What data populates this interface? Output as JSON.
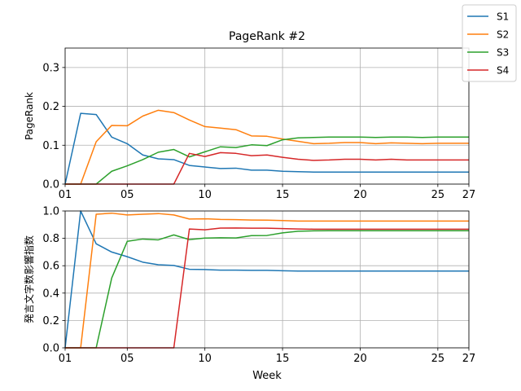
{
  "chart_data": [
    {
      "type": "line",
      "title": "PageRank #2",
      "xlabel": "",
      "ylabel": "PageRank",
      "xlim": [
        1,
        27
      ],
      "ylim": [
        0,
        0.35
      ],
      "xticks": [
        1,
        5,
        10,
        15,
        20,
        25,
        27
      ],
      "xtick_labels": [
        "01",
        "05",
        "10",
        "15",
        "20",
        "25",
        "27"
      ],
      "yticks": [
        0,
        0.1,
        0.2,
        0.3
      ],
      "ytick_labels": [
        "0.0",
        "0.1",
        "0.2",
        "0.3"
      ],
      "grid": true,
      "x": [
        1,
        2,
        3,
        4,
        5,
        6,
        7,
        8,
        9,
        10,
        11,
        12,
        13,
        14,
        15,
        16,
        17,
        18,
        19,
        20,
        21,
        22,
        23,
        24,
        25,
        26,
        27
      ],
      "series": [
        {
          "name": "S1",
          "color": "#1f77b4",
          "values": [
            0,
            0.182,
            0.179,
            0.121,
            0.104,
            0.075,
            0.065,
            0.063,
            0.048,
            0.044,
            0.04,
            0.041,
            0.036,
            0.036,
            0.033,
            0.032,
            0.031,
            0.031,
            0.031,
            0.031,
            0.031,
            0.031,
            0.031,
            0.031,
            0.031,
            0.031,
            0.031
          ]
        },
        {
          "name": "S2",
          "color": "#ff7f0e",
          "values": [
            0,
            0,
            0.109,
            0.151,
            0.15,
            0.175,
            0.19,
            0.184,
            0.165,
            0.148,
            0.144,
            0.14,
            0.124,
            0.123,
            0.116,
            0.11,
            0.104,
            0.105,
            0.107,
            0.107,
            0.104,
            0.106,
            0.105,
            0.104,
            0.105,
            0.105,
            0.105
          ]
        },
        {
          "name": "S3",
          "color": "#2ca02c",
          "values": [
            0,
            0,
            0,
            0.033,
            0.047,
            0.063,
            0.082,
            0.089,
            0.07,
            0.083,
            0.096,
            0.094,
            0.101,
            0.099,
            0.114,
            0.119,
            0.12,
            0.121,
            0.121,
            0.121,
            0.12,
            0.121,
            0.121,
            0.12,
            0.121,
            0.121,
            0.121
          ]
        },
        {
          "name": "S4",
          "color": "#d62728",
          "values": [
            0,
            0,
            0,
            0,
            0,
            0,
            0,
            0,
            0.079,
            0.071,
            0.081,
            0.079,
            0.073,
            0.075,
            0.069,
            0.064,
            0.061,
            0.062,
            0.064,
            0.064,
            0.062,
            0.064,
            0.062,
            0.062,
            0.062,
            0.062,
            0.062
          ]
        }
      ]
    },
    {
      "type": "line",
      "title": "",
      "xlabel": "Week",
      "ylabel": "発言文字数影響指数",
      "xlim": [
        1,
        27
      ],
      "ylim": [
        0,
        1.0
      ],
      "xticks": [
        1,
        5,
        10,
        15,
        20,
        25,
        27
      ],
      "xtick_labels": [
        "01",
        "05",
        "10",
        "15",
        "20",
        "25",
        "27"
      ],
      "yticks": [
        0,
        0.2,
        0.4,
        0.6,
        0.8,
        1.0
      ],
      "ytick_labels": [
        "0.0",
        "0.2",
        "0.4",
        "0.6",
        "0.8",
        "1.0"
      ],
      "grid": true,
      "x": [
        1,
        2,
        3,
        4,
        5,
        6,
        7,
        8,
        9,
        10,
        11,
        12,
        13,
        14,
        15,
        16,
        17,
        18,
        19,
        20,
        21,
        22,
        23,
        24,
        25,
        26,
        27
      ],
      "series": [
        {
          "name": "S1",
          "color": "#1f77b4",
          "values": [
            0,
            1.0,
            0.76,
            0.7,
            0.666,
            0.626,
            0.607,
            0.602,
            0.574,
            0.572,
            0.568,
            0.568,
            0.566,
            0.566,
            0.563,
            0.561,
            0.561,
            0.561,
            0.561,
            0.561,
            0.561,
            0.561,
            0.561,
            0.561,
            0.561,
            0.561,
            0.561
          ]
        },
        {
          "name": "S2",
          "color": "#ff7f0e",
          "values": [
            0,
            0,
            0.976,
            0.984,
            0.971,
            0.976,
            0.981,
            0.971,
            0.941,
            0.943,
            0.938,
            0.937,
            0.934,
            0.933,
            0.93,
            0.926,
            0.926,
            0.926,
            0.926,
            0.926,
            0.926,
            0.926,
            0.926,
            0.926,
            0.926,
            0.926,
            0.926
          ]
        },
        {
          "name": "S3",
          "color": "#2ca02c",
          "values": [
            0,
            0,
            0,
            0.51,
            0.778,
            0.795,
            0.789,
            0.825,
            0.791,
            0.802,
            0.804,
            0.803,
            0.82,
            0.821,
            0.84,
            0.852,
            0.855,
            0.856,
            0.856,
            0.856,
            0.856,
            0.856,
            0.856,
            0.856,
            0.856,
            0.856,
            0.856
          ]
        },
        {
          "name": "S4",
          "color": "#d62728",
          "values": [
            0,
            0,
            0,
            0,
            0,
            0,
            0,
            0,
            0.868,
            0.862,
            0.875,
            0.876,
            0.874,
            0.874,
            0.871,
            0.868,
            0.867,
            0.867,
            0.867,
            0.867,
            0.867,
            0.867,
            0.867,
            0.867,
            0.867,
            0.867,
            0.867
          ]
        }
      ]
    }
  ],
  "legend": {
    "placement": "top-right",
    "items": [
      {
        "label": "S1",
        "color": "#1f77b4"
      },
      {
        "label": "S2",
        "color": "#ff7f0e"
      },
      {
        "label": "S3",
        "color": "#2ca02c"
      },
      {
        "label": "S4",
        "color": "#d62728"
      }
    ]
  }
}
